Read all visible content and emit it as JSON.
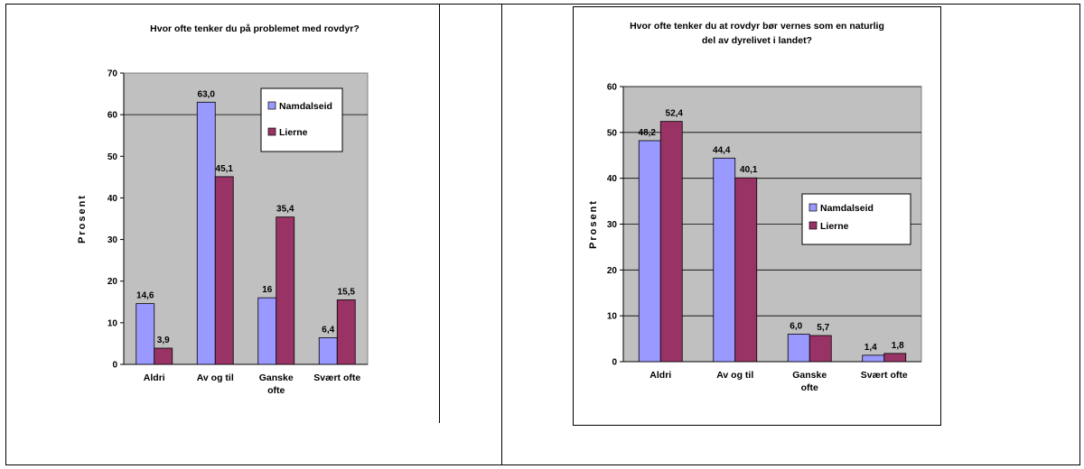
{
  "chart_data": [
    {
      "type": "bar",
      "title": "Hvor ofte tenker du på problemet med rovdyr?",
      "ylabel": "Prosent",
      "xlabel": "",
      "ylim": [
        0,
        70
      ],
      "yticks": [
        0,
        10,
        20,
        30,
        40,
        50,
        60,
        70
      ],
      "grid": false,
      "legend_position": "top-right",
      "categories": [
        [
          "Aldri"
        ],
        [
          "Av og til"
        ],
        [
          "Ganske",
          "ofte"
        ],
        [
          "Svært ofte"
        ]
      ],
      "series": [
        {
          "name": "Namdalseid",
          "color": "#9999ff",
          "values": [
            14.6,
            63.0,
            16,
            6.4
          ],
          "labels": [
            "14,6",
            "63,0",
            "16",
            "6,4"
          ]
        },
        {
          "name": "Lierne",
          "color": "#993366",
          "values": [
            3.9,
            45.1,
            35.4,
            15.5
          ],
          "labels": [
            "3,9",
            "45,1",
            "35,4",
            "15,5"
          ]
        }
      ],
      "plot_background": "#c0c0c0"
    },
    {
      "type": "bar",
      "title": "Hvor ofte tenker du at rovdyr bør vernes som en naturlig del av dyrelivet i landet?",
      "title_lines": [
        "Hvor ofte tenker du at rovdyr bør vernes som en naturlig",
        "del av dyrelivet i landet?"
      ],
      "ylabel": "Prosent",
      "xlabel": "",
      "ylim": [
        0,
        60
      ],
      "yticks": [
        0,
        10,
        20,
        30,
        40,
        50,
        60
      ],
      "grid": true,
      "legend_position": "center-right",
      "categories": [
        [
          "Aldri"
        ],
        [
          "Av og til"
        ],
        [
          "Ganske",
          "ofte"
        ],
        [
          "Svært ofte"
        ]
      ],
      "series": [
        {
          "name": "Namdalseid",
          "color": "#9999ff",
          "values": [
            48.2,
            44.4,
            6.0,
            1.4
          ],
          "labels": [
            "48,2",
            "44,4",
            "6,0",
            "1,4"
          ]
        },
        {
          "name": "Lierne",
          "color": "#993366",
          "values": [
            52.4,
            40.1,
            5.7,
            1.8
          ],
          "labels": [
            "52,4",
            "40,1",
            "5,7",
            "1,8"
          ]
        }
      ],
      "plot_background": "#c0c0c0"
    }
  ]
}
